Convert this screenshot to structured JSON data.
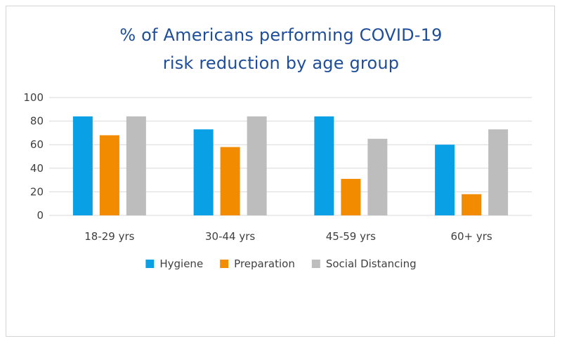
{
  "chart_data": {
    "type": "bar",
    "title_lines": [
      "% of Americans performing COVID-19",
      "risk reduction  by age group"
    ],
    "categories": [
      "18-29 yrs",
      "30-44 yrs",
      "45-59 yrs",
      "60+ yrs"
    ],
    "series": [
      {
        "name": "Hygiene",
        "color": "#0aa0e6",
        "values": [
          84,
          73,
          84,
          60
        ]
      },
      {
        "name": "Preparation",
        "color": "#f28b00",
        "values": [
          68,
          58,
          31,
          18
        ]
      },
      {
        "name": "Social Distancing",
        "color": "#bdbdbd",
        "values": [
          84,
          84,
          65,
          73
        ]
      }
    ],
    "ylim": [
      0,
      100
    ],
    "yticks": [
      0,
      20,
      40,
      60,
      80,
      100
    ],
    "grid": true,
    "legend_position": "bottom"
  }
}
